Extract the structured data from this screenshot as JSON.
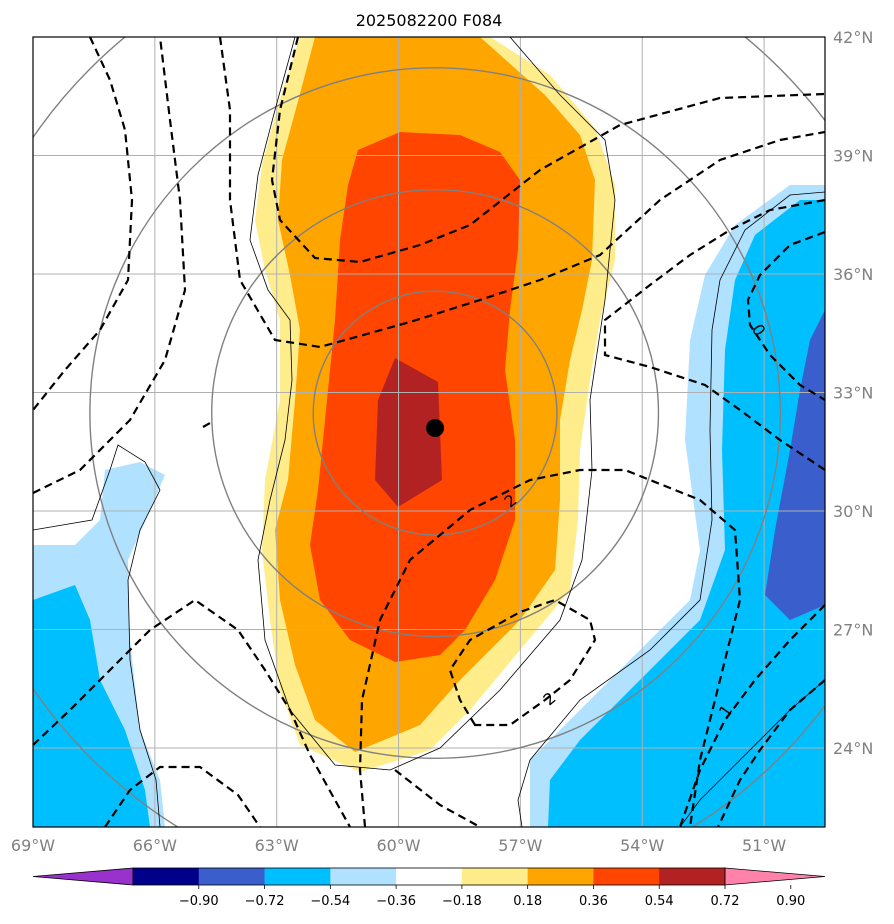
{
  "chart_data": {
    "type": "heatmap",
    "title": "2025082200 F084",
    "x_axis": {
      "range_deg": [
        -69,
        -49.5
      ],
      "ticks": [
        -69,
        -66,
        -63,
        -60,
        -57,
        -54,
        -51
      ],
      "tick_labels": [
        "69°W",
        "66°W",
        "63°W",
        "60°W",
        "57°W",
        "54°W",
        "51°W"
      ]
    },
    "y_axis": {
      "range_deg": [
        22,
        42
      ],
      "ticks": [
        24,
        27,
        30,
        33,
        36,
        39,
        42
      ],
      "tick_labels": [
        "24°N",
        "27°N",
        "30°N",
        "33°N",
        "36°N",
        "39°N",
        "42°N"
      ],
      "side": "right"
    },
    "grid": true,
    "storm_center": {
      "lon": -59.1,
      "lat": 32.1
    },
    "range_rings_deg": [
      3,
      5.5,
      8.5,
      12
    ],
    "filled_contour_levels": [
      0.18,
      0.36,
      0.54,
      0.72,
      0.9
    ],
    "contour_labels": [
      "0",
      "1",
      "2",
      "2"
    ],
    "colorbar": {
      "orientation": "horizontal",
      "extend": "both",
      "colors": [
        "#9932cc",
        "#00008b",
        "#3a5fcd",
        "#00bfff",
        "#b0e2ff",
        "#ffffff",
        "#ffec8b",
        "#ffa500",
        "#ff4500",
        "#b22222",
        "#ff82ab"
      ],
      "boundaries": [
        -0.9,
        -0.72,
        -0.54,
        -0.36,
        -0.18,
        0.18,
        0.36,
        0.54,
        0.72,
        0.9
      ],
      "tick_labels": [
        "−0.90",
        "−0.72",
        "−0.54",
        "−0.36",
        "−0.18",
        "0.18",
        "0.36",
        "0.54",
        "0.72",
        "0.90"
      ]
    }
  }
}
